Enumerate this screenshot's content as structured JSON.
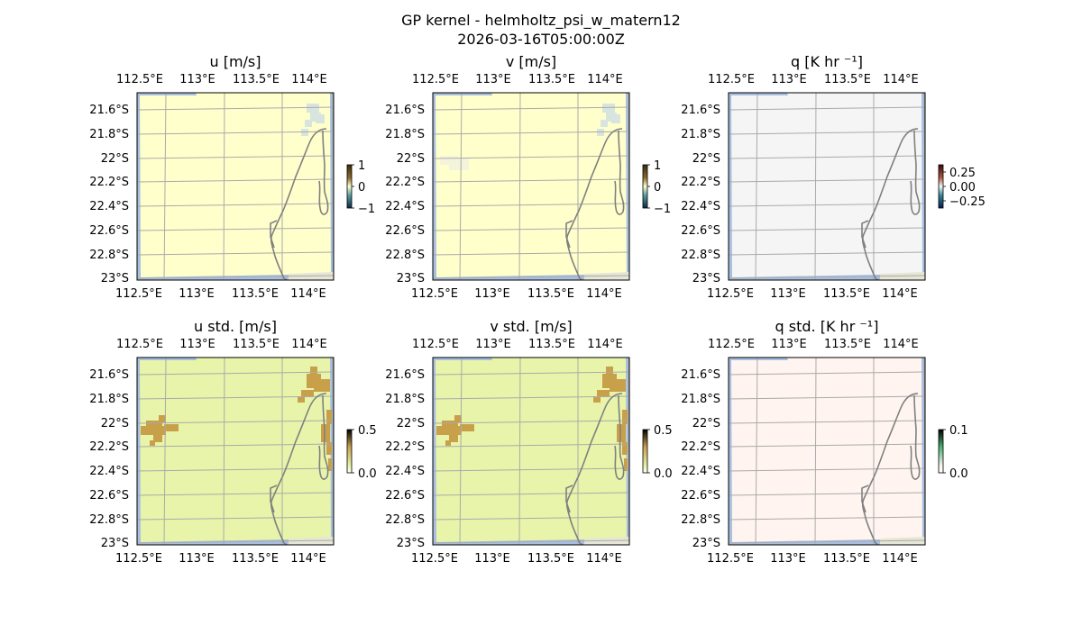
{
  "figure": {
    "title": "GP kernel - helmholtz_psi_w_matern12",
    "subtitle": "2026-03-16T05:00:00Z"
  },
  "map_ticks": {
    "lon": [
      "112.5°E",
      "113°E",
      "113.5°E",
      "114°E"
    ],
    "lat": [
      "21.6°S",
      "21.8°S",
      "22°S",
      "22.2°S",
      "22.4°S",
      "22.6°S",
      "22.8°S",
      "23°S"
    ]
  },
  "chart_data": [
    {
      "type": "heatmap",
      "title": "u [m/s]",
      "xlabel": "",
      "ylabel": "",
      "background_color": "#ffffcc",
      "grid": true,
      "colorbar": {
        "ticks": [
          "1",
          "0",
          "−1"
        ],
        "values": [
          1,
          0,
          -1
        ],
        "range": [
          -1,
          1
        ],
        "colors": [
          "#0b2a4a",
          "#5aa0a0",
          "#ffffcc",
          "#8a6a30",
          "#3d2a0b"
        ]
      },
      "anomaly_color": "#d8e4de",
      "anomaly_regions": [
        "offshore patch near 114.0°E 21.6°S–21.8°S"
      ]
    },
    {
      "type": "heatmap",
      "title": "v [m/s]",
      "xlabel": "",
      "ylabel": "",
      "background_color": "#ffffcc",
      "grid": true,
      "colorbar": {
        "ticks": [
          "1",
          "0",
          "−1"
        ],
        "values": [
          1,
          0,
          -1
        ],
        "range": [
          -1,
          1
        ],
        "colors": [
          "#0b2a4a",
          "#5aa0a0",
          "#ffffcc",
          "#8a6a30",
          "#3d2a0b"
        ]
      },
      "anomaly_color": "#d8e4de",
      "anomaly_regions": [
        "offshore patch near 114.0°E 21.6°S–21.8°S",
        "faint patch near 112.7°E 22.0°S"
      ]
    },
    {
      "type": "heatmap",
      "title": "q [K hr ⁻¹]",
      "xlabel": "",
      "ylabel": "",
      "background_color": "#f5f5f5",
      "grid": true,
      "colorbar": {
        "ticks": [
          "0.25",
          "0.00",
          "−0.25"
        ],
        "values": [
          0.25,
          0.0,
          -0.25
        ],
        "range": [
          -0.3,
          0.3
        ],
        "colors": [
          "#0a1a4a",
          "#3a8a9a",
          "#f5f5f5",
          "#b05a40",
          "#3a0a0a"
        ]
      },
      "anomaly_color": "",
      "anomaly_regions": []
    },
    {
      "type": "heatmap",
      "title": "u std. [m/s]",
      "xlabel": "",
      "ylabel": "",
      "background_color": "#e8f4aa",
      "grid": true,
      "colorbar": {
        "ticks": [
          "0.5",
          "0.0"
        ],
        "values": [
          0.5,
          0.0
        ],
        "range": [
          0.0,
          0.5
        ],
        "colors": [
          "#ffffff",
          "#e8f4aa",
          "#c8a050",
          "#000000"
        ]
      },
      "anomaly_color": "#c8a04a",
      "anomaly_regions": [
        "cluster near 112.7°E 22.1°S",
        "strip near 114.0°E 21.5°S–22.3°S"
      ]
    },
    {
      "type": "heatmap",
      "title": "v std. [m/s]",
      "xlabel": "",
      "ylabel": "",
      "background_color": "#e8f4aa",
      "grid": true,
      "colorbar": {
        "ticks": [
          "0.5",
          "0.0"
        ],
        "values": [
          0.5,
          0.0
        ],
        "range": [
          0.0,
          0.5
        ],
        "colors": [
          "#ffffff",
          "#e8f4aa",
          "#c8a050",
          "#000000"
        ]
      },
      "anomaly_color": "#c8a04a",
      "anomaly_regions": [
        "cluster near 112.7°E 22.1°S",
        "strip near 114.0°E 21.5°S–22.3°S"
      ]
    },
    {
      "type": "heatmap",
      "title": "q std. [K hr ⁻¹]",
      "xlabel": "",
      "ylabel": "",
      "background_color": "#fff4f0",
      "grid": true,
      "colorbar": {
        "ticks": [
          "0.1",
          "0.0"
        ],
        "values": [
          0.1,
          0.0
        ],
        "range": [
          0.0,
          0.1
        ],
        "colors": [
          "#ffffff",
          "#fff4f0",
          "#4ab070",
          "#000000"
        ]
      },
      "anomaly_color": "",
      "anomaly_regions": []
    }
  ]
}
